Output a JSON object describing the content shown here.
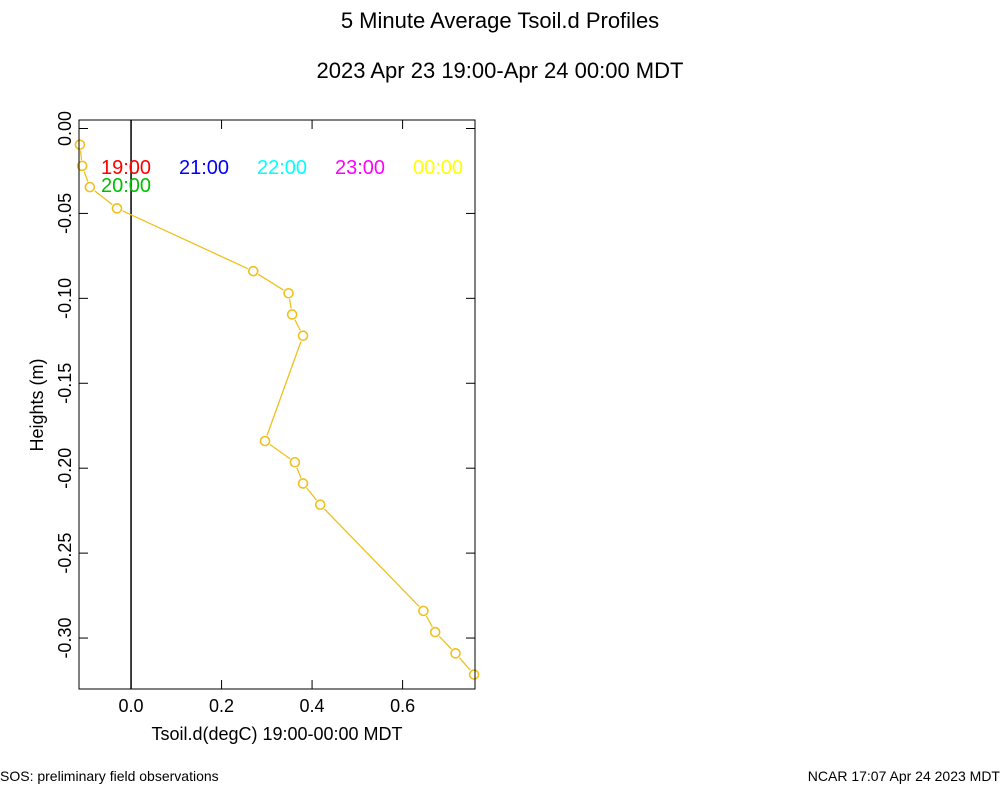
{
  "page": {
    "title": "5 Minute Average Tsoil.d Profiles",
    "subtitle": "2023 Apr 23 19:00-Apr 24 00:00 MDT",
    "footer_left": "SOS: preliminary field observations",
    "footer_right": "NCAR 17:07 Apr 24 2023 MDT"
  },
  "chart_data": {
    "type": "line",
    "title": "5 Minute Average Tsoil.d Profiles",
    "subtitle": "2023 Apr 23 19:00-Apr 24 00:00 MDT",
    "xlabel": "Tsoil.d(degC) 19:00-00:00 MDT",
    "ylabel": "Heights (m)",
    "xlim": [
      -0.115,
      0.76
    ],
    "ylim": [
      -0.33,
      0.005
    ],
    "xticks": [
      0.0,
      0.2,
      0.4,
      0.6
    ],
    "xtick_labels": [
      "0.0",
      "0.2",
      "0.4",
      "0.6"
    ],
    "yticks": [
      0.0,
      -0.05,
      -0.1,
      -0.15,
      -0.2,
      -0.25,
      -0.3
    ],
    "ytick_labels": [
      "0.00",
      "-0.05",
      "-0.10",
      "-0.15",
      "-0.20",
      "-0.25",
      "-0.30"
    ],
    "zero_line_x": 0.0,
    "grid": false,
    "legend": [
      {
        "label": "19:00",
        "color": "#ff0000"
      },
      {
        "label": "20:00",
        "color": "#00c000"
      },
      {
        "label": "21:00",
        "color": "#0000ff"
      },
      {
        "label": "22:00",
        "color": "#00ffff"
      },
      {
        "label": "23:00",
        "color": "#ff00ff"
      },
      {
        "label": "00:00",
        "color": "#ffff00"
      }
    ],
    "series": [
      {
        "name": "00:00",
        "color": "#f0c020",
        "points": [
          {
            "x": -0.113,
            "y": -0.0095
          },
          {
            "x": -0.108,
            "y": -0.022
          },
          {
            "x": -0.091,
            "y": -0.0345
          },
          {
            "x": -0.031,
            "y": -0.047
          },
          {
            "x": 0.27,
            "y": -0.084
          },
          {
            "x": 0.348,
            "y": -0.097
          },
          {
            "x": 0.356,
            "y": -0.1095
          },
          {
            "x": 0.38,
            "y": -0.122
          },
          {
            "x": 0.296,
            "y": -0.184
          },
          {
            "x": 0.362,
            "y": -0.1965
          },
          {
            "x": 0.38,
            "y": -0.209
          },
          {
            "x": 0.418,
            "y": -0.2215
          },
          {
            "x": 0.646,
            "y": -0.284
          },
          {
            "x": 0.672,
            "y": -0.2965
          },
          {
            "x": 0.717,
            "y": -0.309
          },
          {
            "x": 0.758,
            "y": -0.3215
          }
        ]
      }
    ]
  }
}
